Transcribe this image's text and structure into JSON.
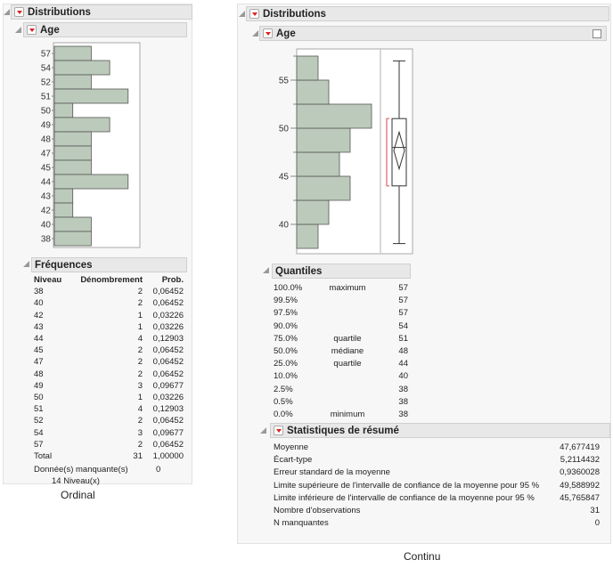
{
  "ordinal": {
    "title": "Distributions",
    "variable": "Age",
    "caption": "Ordinal",
    "histogram": {
      "levels": [
        "57",
        "54",
        "52",
        "51",
        "50",
        "49",
        "48",
        "47",
        "45",
        "44",
        "43",
        "42",
        "40",
        "38"
      ],
      "counts": [
        2,
        3,
        2,
        4,
        1,
        3,
        2,
        2,
        2,
        4,
        1,
        1,
        2,
        2
      ]
    },
    "freq": {
      "title": "Fréquences",
      "headers": [
        "Niveau",
        "Dénombrement",
        "Prob."
      ],
      "rows": [
        [
          "38",
          "2",
          "0,06452"
        ],
        [
          "40",
          "2",
          "0,06452"
        ],
        [
          "42",
          "1",
          "0,03226"
        ],
        [
          "43",
          "1",
          "0,03226"
        ],
        [
          "44",
          "4",
          "0,12903"
        ],
        [
          "45",
          "2",
          "0,06452"
        ],
        [
          "47",
          "2",
          "0,06452"
        ],
        [
          "48",
          "2",
          "0,06452"
        ],
        [
          "49",
          "3",
          "0,09677"
        ],
        [
          "50",
          "1",
          "0,03226"
        ],
        [
          "51",
          "4",
          "0,12903"
        ],
        [
          "52",
          "2",
          "0,06452"
        ],
        [
          "54",
          "3",
          "0,09677"
        ],
        [
          "57",
          "2",
          "0,06452"
        ]
      ],
      "total": [
        "Total",
        "31",
        "1,00000"
      ],
      "missing_label": "Donnée(s) manquante(s)",
      "missing_value": "0",
      "levels_text": "14  Niveau(x)"
    }
  },
  "continuous": {
    "title": "Distributions",
    "variable": "Age",
    "caption": "Continu",
    "histogram": {
      "bin_starts": [
        37.5,
        40,
        42.5,
        45,
        47.5,
        50,
        52.5,
        55
      ],
      "bin_width": 2.5,
      "counts": [
        2,
        3,
        5,
        4,
        5,
        7,
        3,
        2
      ],
      "axis_ticks": [
        "40",
        "45",
        "50",
        "55"
      ],
      "axis_range": [
        37.5,
        57.5
      ]
    },
    "boxplot": {
      "min": 38,
      "q1": 44,
      "median": 48,
      "q3": 51,
      "max": 57,
      "mean": 47.677419,
      "ci_low": 45.765847,
      "ci_high": 49.588992,
      "shortest_half": [
        44,
        51
      ]
    },
    "quantiles": {
      "title": "Quantiles",
      "rows": [
        [
          "100.0%",
          "maximum",
          "57"
        ],
        [
          "99.5%",
          "",
          "57"
        ],
        [
          "97.5%",
          "",
          "57"
        ],
        [
          "90.0%",
          "",
          "54"
        ],
        [
          "75.0%",
          "quartile",
          "51"
        ],
        [
          "50.0%",
          "médiane",
          "48"
        ],
        [
          "25.0%",
          "quartile",
          "44"
        ],
        [
          "10.0%",
          "",
          "40"
        ],
        [
          "2.5%",
          "",
          "38"
        ],
        [
          "0.5%",
          "",
          "38"
        ],
        [
          "0.0%",
          "minimum",
          "38"
        ]
      ]
    },
    "summary": {
      "title": "Statistiques de résumé",
      "rows": [
        [
          "Moyenne",
          "47,677419"
        ],
        [
          "Écart-type",
          "5,2114432"
        ],
        [
          "Erreur standard de la moyenne",
          "0,9360028"
        ],
        [
          "Limite supérieure de l'intervalle de confiance de la moyenne pour 95 %",
          "49,588992"
        ],
        [
          "Limite inférieure de l'intervalle de confiance de la moyenne pour 95 %",
          "45,765847"
        ],
        [
          "Nombre d'observations",
          "31"
        ],
        [
          "N manquantes",
          "0"
        ]
      ]
    }
  },
  "colors": {
    "bar": "#bccabb",
    "bar_stroke": "#555",
    "ci_bracket": "#e06070"
  }
}
